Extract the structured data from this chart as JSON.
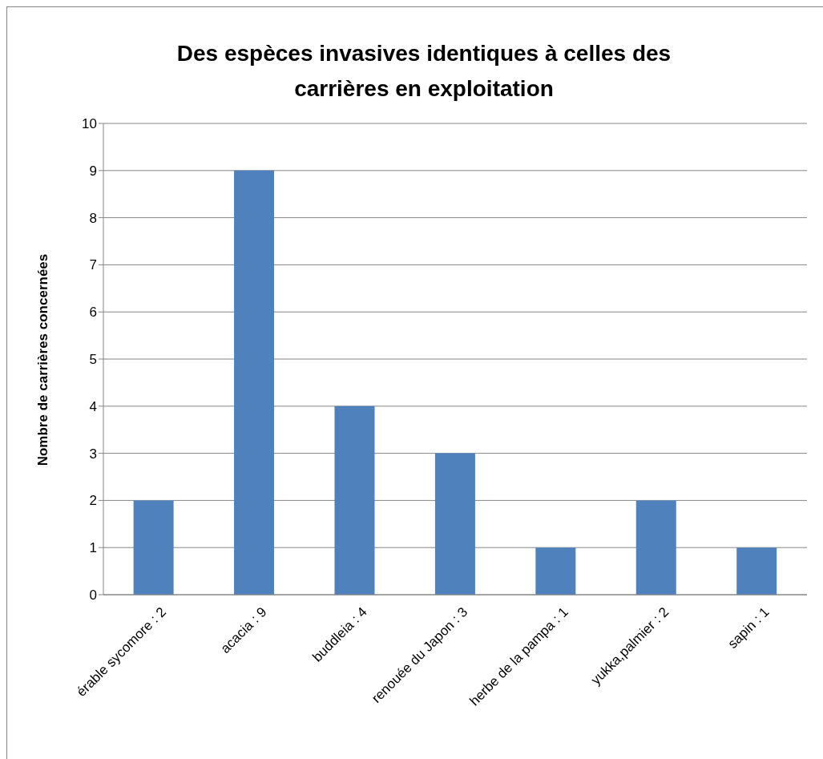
{
  "chart_data": {
    "type": "bar",
    "title": "Des espèces invasives identiques à celles des carrières en exploitation",
    "ylabel": "Nombre de carrières concernées",
    "categories": [
      "érable sycomore : 2",
      "acacia : 9",
      "buddleia : 4",
      "renouée du Japon : 3",
      "herbe de la pampa : 1",
      "yukka,palmier : 2",
      "sapin : 1"
    ],
    "values": [
      2,
      9,
      4,
      3,
      1,
      2,
      1
    ],
    "color": "#4f81bd",
    "ylim": [
      0,
      10
    ],
    "yticks": [
      0,
      1,
      2,
      3,
      4,
      5,
      6,
      7,
      8,
      9,
      10
    ],
    "grid": "y"
  }
}
